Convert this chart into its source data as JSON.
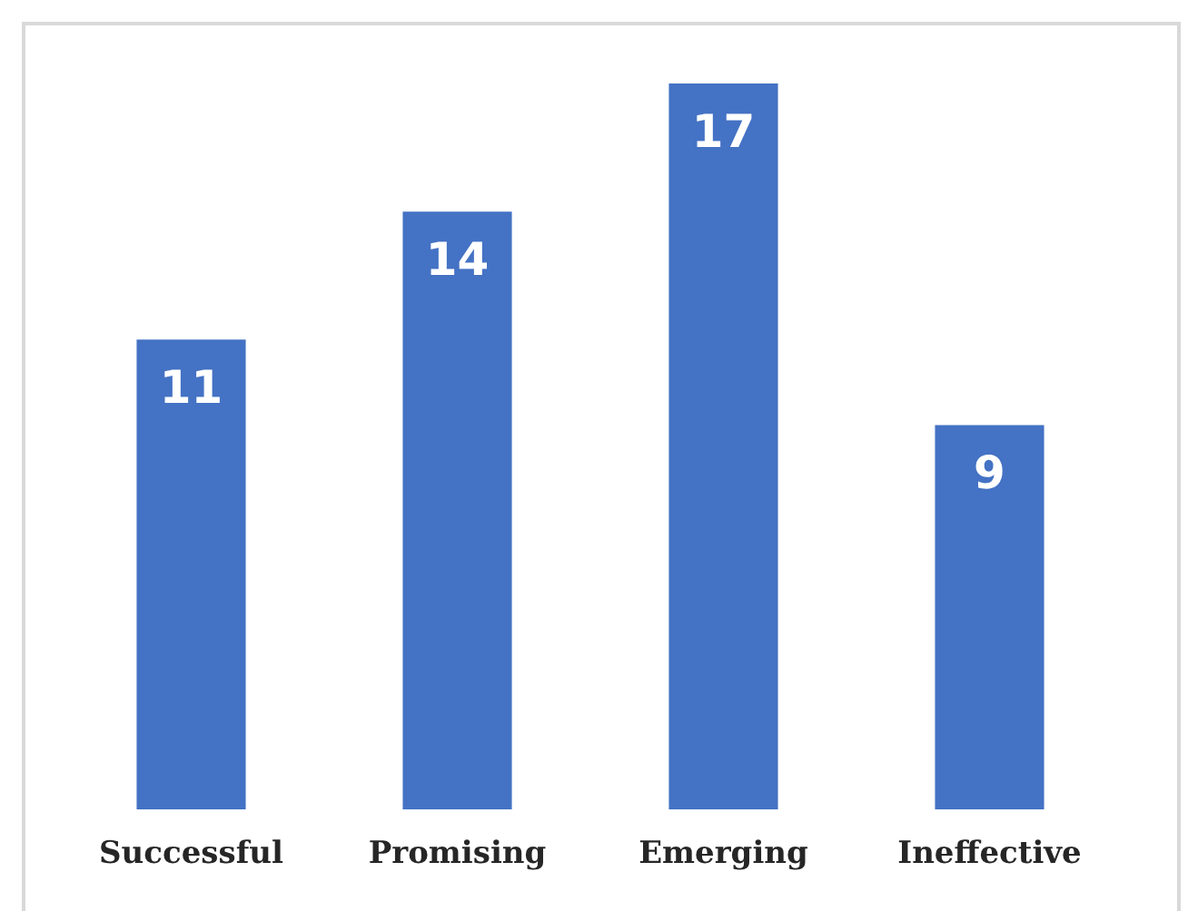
{
  "chart_data": {
    "type": "bar",
    "categories": [
      "Successful",
      "Promising",
      "Emerging",
      "Ineffective"
    ],
    "values": [
      11,
      14,
      17,
      9
    ],
    "color": "#4472c4",
    "data_labels": true
  }
}
